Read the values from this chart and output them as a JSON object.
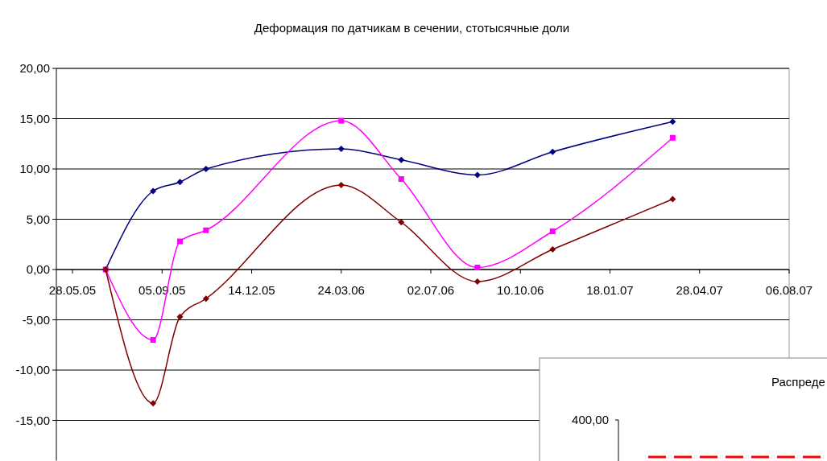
{
  "chart_data": [
    {
      "type": "line",
      "title": "Деформация по датчикам в сечении, стотысячные доли",
      "x": [
        "2005-07-04",
        "2005-08-26",
        "2005-09-25",
        "2005-10-24",
        "2006-03-24",
        "2006-05-30",
        "2006-08-23",
        "2006-11-15",
        "2007-03-29"
      ],
      "series": [
        {
          "color": "#000080",
          "marker": "diamond",
          "values": [
            0,
            7.8,
            8.7,
            10.0,
            12.0,
            10.9,
            9.4,
            11.7,
            14.7
          ]
        },
        {
          "color": "#ff00ff",
          "marker": "square",
          "values": [
            0,
            -7.0,
            2.8,
            3.9,
            14.8,
            9.0,
            0.2,
            3.8,
            13.1
          ]
        },
        {
          "color": "#800000",
          "marker": "diamond",
          "values": [
            0,
            -13.3,
            -4.7,
            -2.9,
            8.4,
            4.7,
            -1.2,
            2.0,
            7.0
          ]
        }
      ],
      "xlim": [
        "2005-05-10",
        "2007-08-06"
      ],
      "xticks": [
        {
          "value": "2005-05-28",
          "label": "28.05.05"
        },
        {
          "value": "2005-09-05",
          "label": "05.09.05"
        },
        {
          "value": "2005-12-14",
          "label": "14.12.05"
        },
        {
          "value": "2006-03-24",
          "label": "24.03.06"
        },
        {
          "value": "2006-07-02",
          "label": "02.07.06"
        },
        {
          "value": "2006-10-10",
          "label": "10.10.06"
        },
        {
          "value": "2007-01-18",
          "label": "18.01.07"
        },
        {
          "value": "2007-04-28",
          "label": "28.04.07"
        },
        {
          "value": "2007-08-06",
          "label": "06.08.07"
        }
      ],
      "ylim": [
        -19,
        20
      ],
      "yticks": [
        {
          "value": -15,
          "label": "-15,00"
        },
        {
          "value": -10,
          "label": "-10,00"
        },
        {
          "value": -5,
          "label": "-5,00"
        },
        {
          "value": 0,
          "label": "0,00"
        },
        {
          "value": 5,
          "label": "5,00"
        },
        {
          "value": 10,
          "label": "10,00"
        },
        {
          "value": 15,
          "label": "15,00"
        },
        {
          "value": 20,
          "label": "20,00"
        }
      ],
      "grid": "y"
    },
    {
      "type": "other",
      "title": "Распреде",
      "annotations": [
        "400,00"
      ]
    }
  ]
}
